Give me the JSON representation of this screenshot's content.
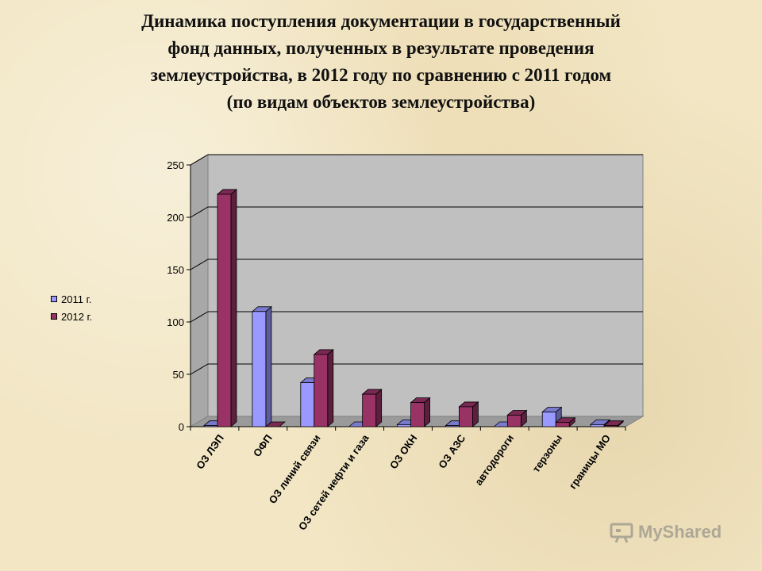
{
  "title_lines": [
    "Динамика поступления документации в государственный",
    "фонд данных, полученных в результате проведения",
    "землеустройства,  в 2012 году по сравнению с 2011 годом",
    "(по видам объектов землеустройства)"
  ],
  "watermark": {
    "text": "MyShared",
    "icon": "projector-icon"
  },
  "colors": {
    "series_2011": "#9999ff",
    "series_2012": "#993366",
    "plot_bg": "#c0c0c0",
    "grid": "#000000"
  },
  "chart_data": {
    "type": "bar",
    "style": "3d-clustered",
    "categories": [
      "ОЗ ЛЭП",
      "ОФП",
      "ОЗ линий связи",
      "ОЗ сетей нефти и газа",
      "ОЗ ОКН",
      "ОЗ АЗС",
      "автодороги",
      "терзоны",
      "границы МО"
    ],
    "series": [
      {
        "name": "2011 г.",
        "values": [
          1,
          110,
          42,
          0,
          2,
          1,
          0,
          14,
          2
        ]
      },
      {
        "name": "2012 г.",
        "values": [
          222,
          0,
          69,
          31,
          23,
          19,
          11,
          4,
          1
        ]
      }
    ],
    "ylim": [
      0,
      250
    ],
    "yticks": [
      "0",
      "50",
      "100",
      "150",
      "200",
      "250"
    ],
    "grid": true,
    "legend": "left"
  }
}
